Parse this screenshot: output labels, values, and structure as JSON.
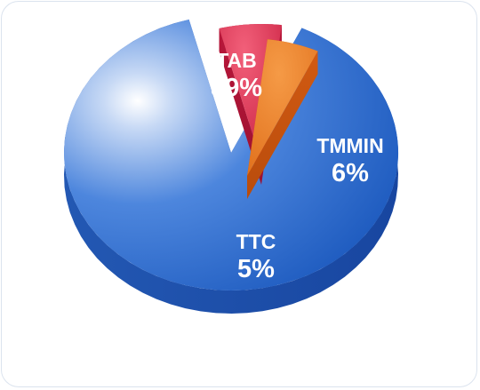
{
  "chart_data": {
    "type": "pie",
    "title": "",
    "slices": [
      {
        "label": "TAB",
        "value": 89,
        "value_text": "89%",
        "color": "#2f6fd0"
      },
      {
        "label": "TMMIN",
        "value": 6,
        "value_text": "6%",
        "color": "#d92f4f"
      },
      {
        "label": "TTC",
        "value": 5,
        "value_text": "5%",
        "color": "#ee7f2a"
      }
    ],
    "exploded": true,
    "style": "3d",
    "legend": "none"
  }
}
